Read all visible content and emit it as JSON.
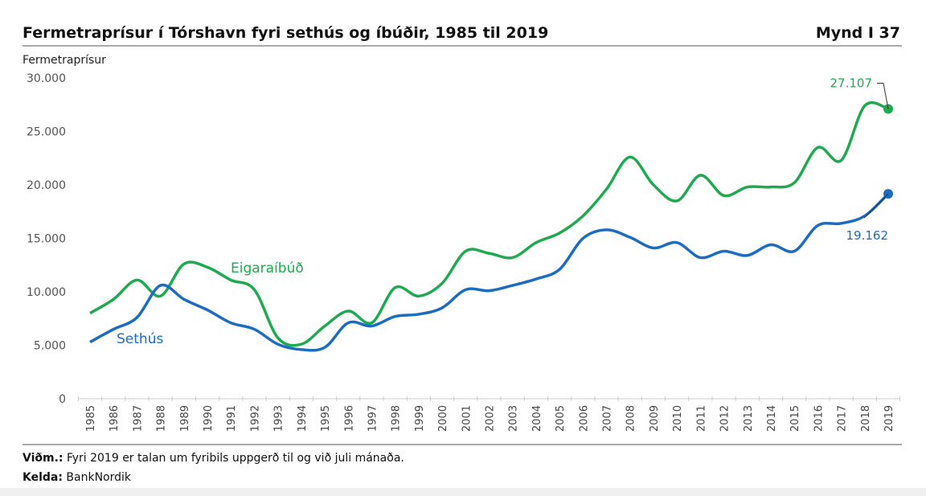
{
  "header": {
    "title": "Fermetraprísur í Tórshavn fyri sethús og íbúðir, 1985 til 2019",
    "figure_id": "Mynd I 37"
  },
  "footer": {
    "note_label": "Viðm.:",
    "note_text": " Fyri 2019 er talan um fyribils uppgerð til og við juli mánaða.",
    "source_label": "Kelda:",
    "source_text": " BankNordik"
  },
  "colors": {
    "green": "#1faa4f",
    "blue": "#1c6cc0"
  },
  "chart_data": {
    "type": "line",
    "title": "Fermetraprísur í Tórshavn fyri sethús og íbúðir, 1985 til 2019",
    "ylabel": "Fermetraprísur",
    "xlabel": "",
    "ylim": [
      0,
      30000
    ],
    "yticks": [
      0,
      5000,
      10000,
      15000,
      20000,
      25000,
      30000
    ],
    "ytick_labels": [
      "0",
      "5.000",
      "10.000",
      "15.000",
      "20.000",
      "25.000",
      "30.000"
    ],
    "grid": false,
    "x": [
      1985,
      1986,
      1987,
      1988,
      1989,
      1990,
      1991,
      1992,
      1993,
      1994,
      1995,
      1996,
      1997,
      1998,
      1999,
      2000,
      2001,
      2002,
      2003,
      2004,
      2005,
      2006,
      2007,
      2008,
      2009,
      2010,
      2011,
      2012,
      2013,
      2014,
      2015,
      2016,
      2017,
      2018,
      2019
    ],
    "x_labels": [
      "1985",
      "1986",
      "1987",
      "1988",
      "1989",
      "1990",
      "1991",
      "1992",
      "1993",
      "1994",
      "1995",
      "1996",
      "1997",
      "1998",
      "1999",
      "2000",
      "2001",
      "2002",
      "2003",
      "2004",
      "2005",
      "2006",
      "2007",
      "2008",
      "2009",
      "2010",
      "2011",
      "2012",
      "2013",
      "2014",
      "2015",
      "2016",
      "2017",
      "2018",
      "2019"
    ],
    "series": [
      {
        "name": "Eigaraíbúð",
        "color": "#1faa4f",
        "end_label": "27.107",
        "values": [
          8000,
          9300,
          11100,
          9600,
          12600,
          12300,
          11100,
          10200,
          5700,
          5100,
          6800,
          8200,
          7100,
          10400,
          9600,
          10800,
          13800,
          13600,
          13200,
          14600,
          15500,
          17100,
          19600,
          22600,
          20000,
          18500,
          20900,
          19000,
          19800,
          19800,
          20200,
          23500,
          22300,
          27400,
          27107
        ]
      },
      {
        "name": "Sethús",
        "color": "#1c6cc0",
        "end_label": "19.162",
        "values": [
          5300,
          6500,
          7600,
          10600,
          9300,
          8300,
          7100,
          6500,
          5100,
          4600,
          4800,
          7100,
          6800,
          7700,
          7900,
          8500,
          10200,
          10100,
          10600,
          11200,
          12100,
          15000,
          15800,
          15100,
          14100,
          14600,
          13200,
          13800,
          13400,
          14400,
          13800,
          16200,
          16400,
          17100,
          19162
        ]
      }
    ]
  }
}
